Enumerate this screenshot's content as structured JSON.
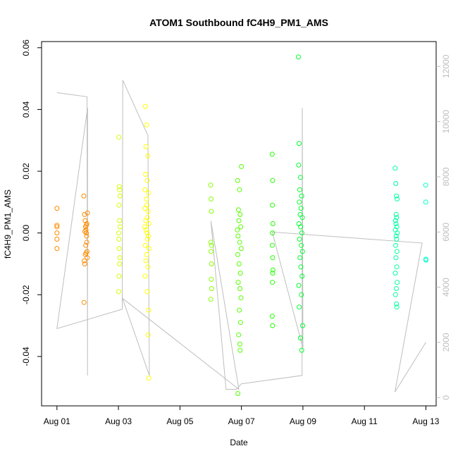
{
  "chart_data": {
    "type": "scatter",
    "title": "ATOM1 Southbound fC4H9_PM1_AMS",
    "xlabel": "Date",
    "ylabel": "fC4H9_PM1_AMS",
    "x_ticks": [
      "Aug 01",
      "Aug 03",
      "Aug 05",
      "Aug 07",
      "Aug 09",
      "Aug 11",
      "Aug 13"
    ],
    "xlim": [
      "2016-07-31T12:00",
      "2016-08-13T08:00"
    ],
    "ylim": [
      -0.056,
      0.062
    ],
    "y_ticks": [
      "-0.04",
      "-0.02",
      "0.00",
      "0.02",
      "0.04",
      "0.06"
    ],
    "y2_ticks": [
      "0",
      "2000",
      "4000",
      "6000",
      "8000",
      "10000",
      "12000"
    ],
    "y2lim": [
      -300,
      12900
    ],
    "grid": false,
    "legend": "none",
    "colors": {
      "gray_line": "#bebebe",
      "axis": "#000000",
      "right_axis": "#bebebe"
    },
    "altitude_track": [
      [
        "2016-08-01T00:00",
        11050
      ],
      [
        "2016-08-01T23:30",
        10900
      ],
      [
        "2016-08-01T23:50",
        800
      ],
      [
        "2016-08-01T23:55",
        10500
      ],
      [
        "2016-08-01T00:00",
        2500
      ],
      [
        "2016-08-03T03:00",
        3200
      ],
      [
        "2016-08-03T03:20",
        11500
      ],
      [
        "2016-08-03T23:00",
        9500
      ],
      [
        "2016-08-04T00:10",
        800
      ],
      [
        "2016-08-03T03:10",
        3600
      ],
      [
        "2016-08-06T22:00",
        300
      ],
      [
        "2016-08-06T00:10",
        6400
      ],
      [
        "2016-08-06T12:00",
        300
      ],
      [
        "2016-08-06T20:00",
        300
      ],
      [
        "2016-08-07T00:00",
        500
      ],
      [
        "2016-08-08T23:20",
        800
      ],
      [
        "2016-08-08T23:30",
        10500
      ],
      [
        "2016-08-09T00:00",
        1800
      ],
      [
        "2016-08-08T00:00",
        6000
      ],
      [
        "2016-08-12T21:00",
        5600
      ],
      [
        "2016-08-11T23:50",
        200
      ],
      [
        "2016-08-12T23:55",
        2000
      ]
    ],
    "series": [
      {
        "color": "#ff8c00",
        "points": [
          [
            "2016-08-01T00:00",
            0.008
          ],
          [
            "2016-08-01T00:00",
            0.0025
          ],
          [
            "2016-08-01T00:00",
            0.002
          ],
          [
            "2016-08-01T00:00",
            0.0
          ],
          [
            "2016-08-01T00:00",
            -0.002
          ],
          [
            "2016-08-01T00:00",
            -0.005
          ],
          [
            "2016-08-01T21:00",
            0.012
          ],
          [
            "2016-08-01T21:30",
            0.006
          ],
          [
            "2016-08-01T22:00",
            0.004
          ],
          [
            "2016-08-01T22:20",
            0.002
          ],
          [
            "2016-08-01T22:40",
            0.001
          ],
          [
            "2016-08-01T23:00",
            0.0
          ],
          [
            "2016-08-01T23:10",
            -0.001
          ],
          [
            "2016-08-01T23:20",
            -0.003
          ],
          [
            "2016-08-01T23:30",
            -0.006
          ],
          [
            "2016-08-01T23:40",
            -0.008
          ],
          [
            "2016-08-01T21:20",
            -0.009
          ],
          [
            "2016-08-01T21:40",
            -0.01
          ],
          [
            "2016-08-01T22:10",
            -0.007
          ],
          [
            "2016-08-01T22:50",
            -0.0065
          ],
          [
            "2016-08-01T21:10",
            -0.0225
          ],
          [
            "2016-08-01T23:50",
            0.0065
          ],
          [
            "2016-08-01T23:20",
            0.003
          ],
          [
            "2016-08-01T22:30",
            -0.004
          ],
          [
            "2016-08-01T23:00",
            0.0025
          ],
          [
            "2016-08-01T21:50",
            0.0005
          ]
        ]
      },
      {
        "color": "#d4ff00",
        "points": [
          [
            "2016-08-03T00:20",
            0.031
          ],
          [
            "2016-08-03T00:40",
            0.015
          ],
          [
            "2016-08-03T01:00",
            0.014
          ],
          [
            "2016-08-03T01:10",
            0.012
          ],
          [
            "2016-08-03T00:30",
            0.009
          ],
          [
            "2016-08-03T00:50",
            0.004
          ],
          [
            "2016-08-03T01:20",
            0.002
          ],
          [
            "2016-08-03T00:10",
            0.0
          ],
          [
            "2016-08-03T00:20",
            -0.002
          ],
          [
            "2016-08-03T00:40",
            -0.005
          ],
          [
            "2016-08-03T00:50",
            -0.01
          ],
          [
            "2016-08-03T00:30",
            -0.014
          ],
          [
            "2016-08-03T00:15",
            -0.019
          ],
          [
            "2016-08-03T01:05",
            -0.008
          ]
        ]
      },
      {
        "color": "#ffff00",
        "points": [
          [
            "2016-08-03T21:00",
            0.041
          ],
          [
            "2016-08-03T22:00",
            0.035
          ],
          [
            "2016-08-03T21:30",
            0.028
          ],
          [
            "2016-08-03T23:00",
            0.025
          ],
          [
            "2016-08-03T21:10",
            0.019
          ],
          [
            "2016-08-03T22:30",
            0.017
          ],
          [
            "2016-08-03T20:40",
            0.014
          ],
          [
            "2016-08-03T23:30",
            0.013
          ],
          [
            "2016-08-03T21:50",
            0.011
          ],
          [
            "2016-08-03T22:10",
            0.009
          ],
          [
            "2016-08-03T20:50",
            0.008
          ],
          [
            "2016-08-03T23:10",
            0.007
          ],
          [
            "2016-08-03T22:40",
            0.005
          ],
          [
            "2016-08-03T21:20",
            0.004
          ],
          [
            "2016-08-03T23:40",
            0.003
          ],
          [
            "2016-08-03T20:30",
            0.002
          ],
          [
            "2016-08-03T21:40",
            0.001
          ],
          [
            "2016-08-03T22:20",
            0.0
          ],
          [
            "2016-08-03T23:20",
            -0.001
          ],
          [
            "2016-08-03T22:50",
            -0.002
          ],
          [
            "2016-08-03T21:00",
            -0.004
          ],
          [
            "2016-08-03T23:50",
            -0.005
          ],
          [
            "2016-08-03T22:00",
            -0.007
          ],
          [
            "2016-08-03T21:30",
            -0.009
          ],
          [
            "2016-08-03T23:00",
            -0.011
          ],
          [
            "2016-08-03T20:50",
            -0.014
          ],
          [
            "2016-08-03T22:30",
            -0.019
          ],
          [
            "2016-08-03T23:30",
            -0.025
          ],
          [
            "2016-08-03T23:10",
            -0.033
          ],
          [
            "2016-08-03T23:40",
            -0.047
          ]
        ]
      },
      {
        "color": "#88ff00",
        "points": [
          [
            "2016-08-06T00:00",
            0.0155
          ],
          [
            "2016-08-06T00:20",
            0.011
          ],
          [
            "2016-08-06T00:30",
            0.007
          ],
          [
            "2016-08-06T00:10",
            -0.003
          ],
          [
            "2016-08-06T00:40",
            -0.004
          ],
          [
            "2016-08-06T00:15",
            -0.006
          ],
          [
            "2016-08-06T00:35",
            -0.01
          ],
          [
            "2016-08-06T00:25",
            -0.015
          ],
          [
            "2016-08-06T00:45",
            -0.018
          ],
          [
            "2016-08-06T00:05",
            -0.0215
          ]
        ]
      },
      {
        "color": "#55ff00",
        "points": [
          [
            "2016-08-06T21:00",
            0.017
          ],
          [
            "2016-08-06T22:30",
            0.014
          ],
          [
            "2016-08-07T00:00",
            0.0215
          ],
          [
            "2016-08-06T21:40",
            0.0075
          ],
          [
            "2016-08-06T23:00",
            0.006
          ],
          [
            "2016-08-06T22:00",
            0.004
          ],
          [
            "2016-08-06T23:30",
            0.002
          ],
          [
            "2016-08-06T20:50",
            0.001
          ],
          [
            "2016-08-06T21:20",
            -0.001
          ],
          [
            "2016-08-06T22:40",
            -0.003
          ],
          [
            "2016-08-06T23:50",
            -0.005
          ],
          [
            "2016-08-06T21:10",
            -0.007
          ],
          [
            "2016-08-06T22:10",
            -0.01
          ],
          [
            "2016-08-06T23:10",
            -0.013
          ],
          [
            "2016-08-06T21:30",
            -0.016
          ],
          [
            "2016-08-06T22:50",
            -0.018
          ],
          [
            "2016-08-06T23:40",
            -0.021
          ],
          [
            "2016-08-06T22:20",
            -0.025
          ],
          [
            "2016-08-06T23:20",
            -0.029
          ],
          [
            "2016-08-06T21:50",
            -0.033
          ],
          [
            "2016-08-06T22:45",
            -0.036
          ],
          [
            "2016-08-06T23:00",
            -0.038
          ],
          [
            "2016-08-06T21:15",
            -0.052
          ]
        ]
      },
      {
        "color": "#22ff00",
        "points": [
          [
            "2016-08-08T00:00",
            0.0255
          ],
          [
            "2016-08-08T00:20",
            0.017
          ],
          [
            "2016-08-08T00:10",
            0.009
          ],
          [
            "2016-08-08T00:30",
            0.003
          ],
          [
            "2016-08-08T00:15",
            0.0
          ],
          [
            "2016-08-08T00:05",
            -0.004
          ],
          [
            "2016-08-08T00:25",
            -0.008
          ],
          [
            "2016-08-08T00:35",
            -0.012
          ],
          [
            "2016-08-08T00:12",
            -0.016
          ],
          [
            "2016-08-08T00:02",
            -0.027
          ],
          [
            "2016-08-08T00:18",
            -0.03
          ],
          [
            "2016-08-08T00:28",
            -0.013
          ]
        ]
      },
      {
        "color": "#00ff30",
        "points": [
          [
            "2016-08-08T20:30",
            0.057
          ],
          [
            "2016-08-08T21:00",
            0.029
          ],
          [
            "2016-08-08T20:40",
            0.022
          ],
          [
            "2016-08-08T22:00",
            0.018
          ],
          [
            "2016-08-08T21:30",
            0.014
          ],
          [
            "2016-08-08T23:00",
            0.012
          ],
          [
            "2016-08-08T21:10",
            0.01
          ],
          [
            "2016-08-08T22:30",
            0.008
          ],
          [
            "2016-08-08T21:50",
            0.006
          ],
          [
            "2016-08-08T23:30",
            0.005
          ],
          [
            "2016-08-08T20:50",
            0.003
          ],
          [
            "2016-08-08T22:10",
            0.002
          ],
          [
            "2016-08-08T23:10",
            0.0
          ],
          [
            "2016-08-08T21:20",
            -0.002
          ],
          [
            "2016-08-08T22:40",
            -0.004
          ],
          [
            "2016-08-08T23:40",
            -0.006
          ],
          [
            "2016-08-08T21:40",
            -0.008
          ],
          [
            "2016-08-08T22:20",
            -0.011
          ],
          [
            "2016-08-08T23:20",
            -0.014
          ],
          [
            "2016-08-08T20:45",
            -0.017
          ],
          [
            "2016-08-08T22:50",
            -0.02
          ],
          [
            "2016-08-08T21:05",
            -0.024
          ],
          [
            "2016-08-08T23:50",
            -0.03
          ],
          [
            "2016-08-08T22:05",
            -0.034
          ],
          [
            "2016-08-08T23:05",
            -0.038
          ]
        ]
      },
      {
        "color": "#00ffa0",
        "points": [
          [
            "2016-08-12T00:00",
            0.021
          ],
          [
            "2016-08-12T00:30",
            0.016
          ],
          [
            "2016-08-12T01:00",
            0.012
          ],
          [
            "2016-08-12T01:30",
            0.011
          ],
          [
            "2016-08-12T00:50",
            0.006
          ],
          [
            "2016-08-12T01:10",
            0.005
          ],
          [
            "2016-08-12T00:20",
            0.004
          ],
          [
            "2016-08-12T00:40",
            0.003
          ],
          [
            "2016-08-12T01:20",
            0.002
          ],
          [
            "2016-08-12T00:10",
            0.001
          ],
          [
            "2016-08-12T01:40",
            0.0
          ],
          [
            "2016-08-12T00:45",
            -0.001
          ],
          [
            "2016-08-12T01:05",
            -0.002
          ],
          [
            "2016-08-12T00:25",
            -0.004
          ],
          [
            "2016-08-12T01:25",
            -0.006
          ],
          [
            "2016-08-12T00:35",
            -0.008
          ],
          [
            "2016-08-12T01:15",
            -0.011
          ],
          [
            "2016-08-12T00:05",
            -0.013
          ],
          [
            "2016-08-12T01:35",
            -0.016
          ],
          [
            "2016-08-12T00:55",
            -0.018
          ],
          [
            "2016-08-12T00:15",
            -0.02
          ],
          [
            "2016-08-12T01:00",
            -0.023
          ],
          [
            "2016-08-12T01:20",
            -0.024
          ]
        ]
      },
      {
        "color": "#00ffcc",
        "points": [
          [
            "2016-08-12T23:50",
            0.0155
          ],
          [
            "2016-08-12T23:55",
            0.01
          ],
          [
            "2016-08-12T23:58",
            -0.0085
          ],
          [
            "2016-08-13T00:00",
            -0.0088
          ]
        ]
      }
    ]
  }
}
